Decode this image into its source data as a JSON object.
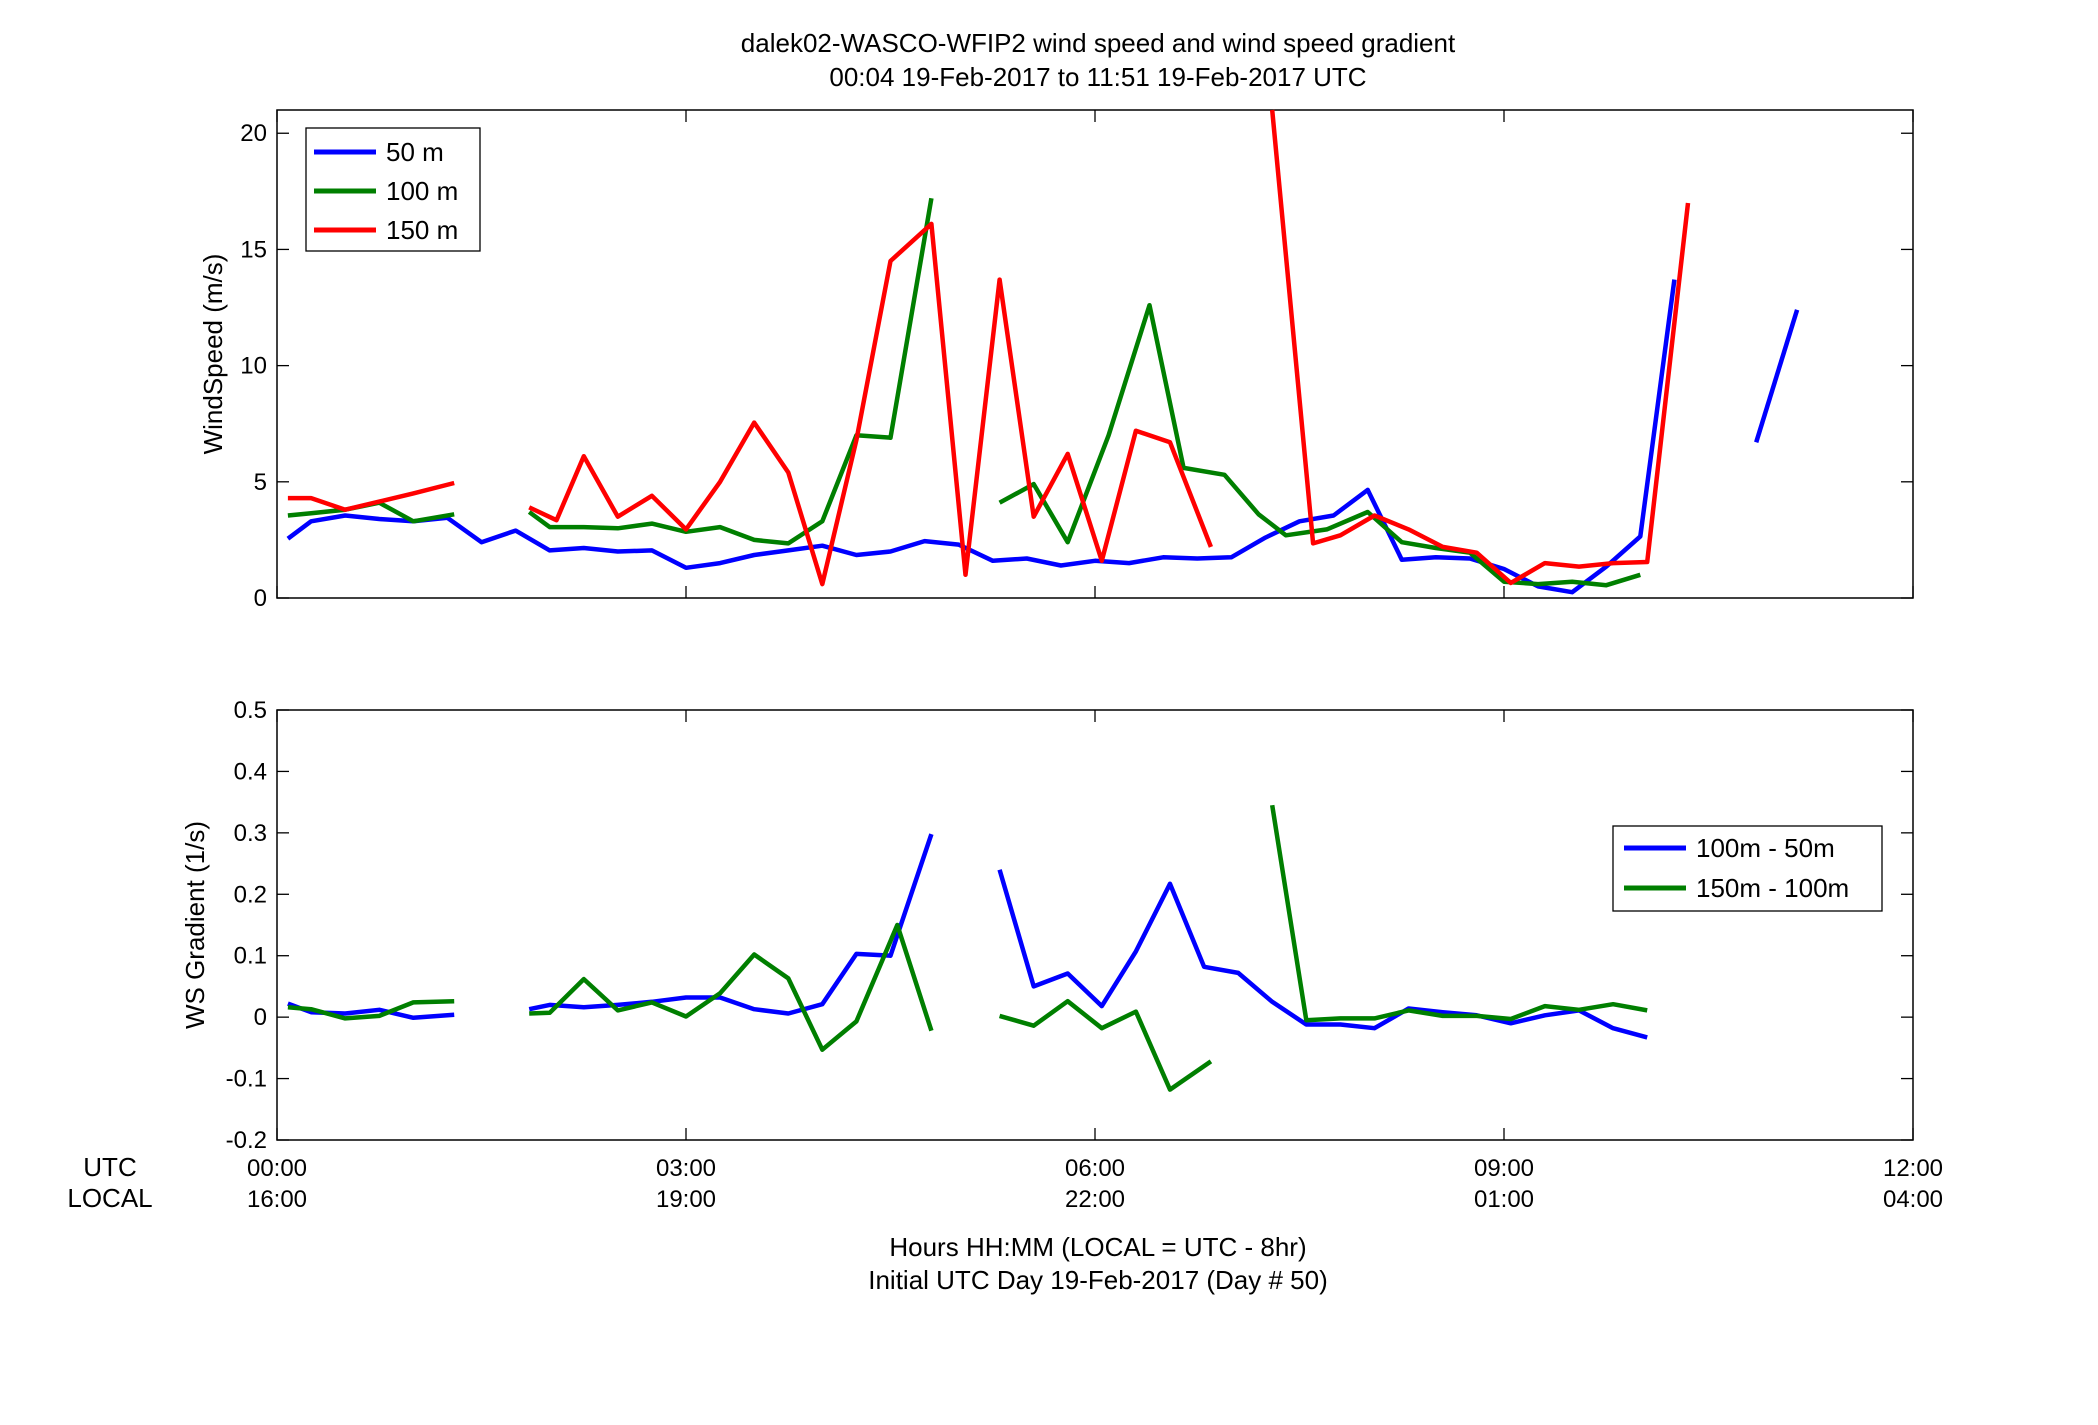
{
  "figure": {
    "title_line1": "dalek02-WASCO-WFIP2  wind speed and wind speed gradient",
    "title_line2": "00:04 19-Feb-2017 to 11:51 19-Feb-2017  UTC",
    "utc_row_label": "UTC",
    "local_row_label": "LOCAL",
    "xlabel_line1": "Hours HH:MM  (LOCAL = UTC - 8hr)",
    "xlabel_line2": "Initial UTC Day 19-Feb-2017 (Day # 50)",
    "x_ticks_hours": [
      0,
      3,
      6,
      9,
      12
    ],
    "x_ticks_utc": [
      "00:00",
      "03:00",
      "06:00",
      "09:00",
      "12:00"
    ],
    "x_ticks_local": [
      "16:00",
      "19:00",
      "22:00",
      "01:00",
      "04:00"
    ],
    "xlim_hours": [
      0,
      12
    ]
  },
  "colors": {
    "blue": "#0000ff",
    "green": "#007f00",
    "red": "#ff0000"
  },
  "chart_data": [
    {
      "type": "line",
      "ylabel": "WindSpeed (m/s)",
      "ylim": [
        0,
        21
      ],
      "y_ticks": [
        0,
        5,
        10,
        15,
        20
      ],
      "legend_position": "top-left",
      "series": [
        {
          "name": "50 m",
          "color": "#0000ff",
          "segments": [
            [
              [
                0.08,
                2.55
              ],
              [
                0.25,
                3.3
              ],
              [
                0.5,
                3.55
              ],
              [
                0.75,
                3.4
              ],
              [
                1.0,
                3.3
              ],
              [
                1.25,
                3.45
              ],
              [
                1.5,
                2.4
              ],
              [
                1.75,
                2.9
              ],
              [
                2.0,
                2.05
              ],
              [
                2.25,
                2.15
              ],
              [
                2.5,
                2.0
              ],
              [
                2.75,
                2.05
              ],
              [
                3.0,
                1.3
              ],
              [
                3.25,
                1.5
              ],
              [
                3.5,
                1.85
              ],
              [
                3.75,
                2.05
              ],
              [
                4.0,
                2.25
              ],
              [
                4.25,
                1.85
              ],
              [
                4.5,
                2.0
              ],
              [
                4.75,
                2.45
              ],
              [
                5.0,
                2.3
              ],
              [
                5.25,
                1.6
              ],
              [
                5.5,
                1.7
              ],
              [
                5.75,
                1.4
              ],
              [
                6.0,
                1.6
              ],
              [
                6.25,
                1.5
              ],
              [
                6.5,
                1.75
              ],
              [
                6.75,
                1.7
              ],
              [
                7.0,
                1.75
              ],
              [
                7.25,
                2.6
              ],
              [
                7.5,
                3.3
              ],
              [
                7.75,
                3.55
              ],
              [
                8.0,
                4.65
              ],
              [
                8.25,
                1.65
              ],
              [
                8.5,
                1.75
              ],
              [
                8.75,
                1.7
              ],
              [
                9.0,
                1.25
              ],
              [
                9.25,
                0.5
              ],
              [
                9.5,
                0.25
              ],
              [
                9.75,
                1.35
              ],
              [
                10.0,
                2.65
              ],
              [
                10.25,
                13.7
              ]
            ],
            [
              [
                10.85,
                6.7
              ],
              [
                11.15,
                12.4
              ]
            ]
          ]
        },
        {
          "name": "100 m",
          "color": "#007f00",
          "segments": [
            [
              [
                0.08,
                3.55
              ],
              [
                0.25,
                3.65
              ],
              [
                0.5,
                3.8
              ],
              [
                0.75,
                4.1
              ],
              [
                1.0,
                3.3
              ],
              [
                1.3,
                3.6
              ]
            ],
            [
              [
                1.85,
                3.7
              ],
              [
                2.0,
                3.05
              ],
              [
                2.25,
                3.05
              ],
              [
                2.5,
                3.0
              ],
              [
                2.75,
                3.2
              ],
              [
                3.0,
                2.85
              ],
              [
                3.25,
                3.05
              ],
              [
                3.5,
                2.5
              ],
              [
                3.75,
                2.35
              ],
              [
                4.0,
                3.3
              ],
              [
                4.25,
                7.0
              ],
              [
                4.5,
                6.9
              ],
              [
                4.8,
                17.2
              ]
            ],
            [
              [
                5.3,
                4.1
              ],
              [
                5.55,
                4.9
              ],
              [
                5.8,
                2.4
              ],
              [
                6.1,
                7.0
              ],
              [
                6.4,
                12.6
              ],
              [
                6.65,
                5.6
              ],
              [
                6.95,
                5.3
              ],
              [
                7.2,
                3.6
              ],
              [
                7.4,
                2.7
              ],
              [
                7.7,
                2.95
              ],
              [
                8.0,
                3.7
              ],
              [
                8.25,
                2.4
              ],
              [
                8.5,
                2.15
              ],
              [
                8.75,
                1.95
              ],
              [
                9.0,
                0.7
              ],
              [
                9.25,
                0.6
              ],
              [
                9.5,
                0.7
              ],
              [
                9.75,
                0.55
              ],
              [
                10.0,
                1.0
              ]
            ]
          ]
        },
        {
          "name": "150 m",
          "color": "#ff0000",
          "segments": [
            [
              [
                0.08,
                4.3
              ],
              [
                0.25,
                4.3
              ],
              [
                0.5,
                3.8
              ],
              [
                0.75,
                4.15
              ],
              [
                1.0,
                4.5
              ],
              [
                1.3,
                4.95
              ]
            ],
            [
              [
                1.85,
                3.9
              ],
              [
                2.05,
                3.35
              ],
              [
                2.25,
                6.1
              ],
              [
                2.5,
                3.5
              ],
              [
                2.75,
                4.4
              ],
              [
                3.0,
                2.95
              ],
              [
                3.25,
                5.0
              ],
              [
                3.5,
                7.55
              ],
              [
                3.75,
                5.4
              ],
              [
                4.0,
                0.6
              ],
              [
                4.25,
                6.8
              ],
              [
                4.5,
                14.5
              ],
              [
                4.8,
                16.1
              ],
              [
                5.05,
                1.0
              ],
              [
                5.3,
                13.7
              ],
              [
                5.55,
                3.5
              ],
              [
                5.8,
                6.2
              ],
              [
                6.05,
                1.6
              ],
              [
                6.3,
                7.2
              ],
              [
                6.55,
                6.7
              ],
              [
                6.85,
                2.2
              ]
            ],
            [
              [
                7.3,
                21.0
              ],
              [
                7.6,
                2.35
              ],
              [
                7.8,
                2.7
              ],
              [
                8.05,
                3.55
              ],
              [
                8.3,
                2.95
              ],
              [
                8.55,
                2.2
              ],
              [
                8.8,
                1.95
              ],
              [
                9.05,
                0.65
              ],
              [
                9.3,
                1.5
              ],
              [
                9.55,
                1.35
              ],
              [
                9.8,
                1.5
              ],
              [
                10.05,
                1.55
              ],
              [
                10.35,
                17.0
              ]
            ]
          ]
        }
      ]
    },
    {
      "type": "line",
      "ylabel": "WS Gradient (1/s)",
      "ylim": [
        -0.2,
        0.5
      ],
      "y_ticks": [
        -0.2,
        -0.1,
        0,
        0.1,
        0.2,
        0.3,
        0.4,
        0.5
      ],
      "legend_position": "right",
      "series": [
        {
          "name": "100m - 50m",
          "color": "#0000ff",
          "segments": [
            [
              [
                0.08,
                0.022
              ],
              [
                0.25,
                0.008
              ],
              [
                0.5,
                0.006
              ],
              [
                0.75,
                0.012
              ],
              [
                1.0,
                -0.001
              ],
              [
                1.3,
                0.004
              ]
            ],
            [
              [
                1.85,
                0.013
              ],
              [
                2.0,
                0.02
              ],
              [
                2.25,
                0.016
              ],
              [
                2.5,
                0.02
              ],
              [
                2.75,
                0.025
              ],
              [
                3.0,
                0.032
              ],
              [
                3.25,
                0.032
              ],
              [
                3.5,
                0.013
              ],
              [
                3.75,
                0.006
              ],
              [
                4.0,
                0.021
              ],
              [
                4.25,
                0.103
              ],
              [
                4.5,
                0.1
              ],
              [
                4.8,
                0.298
              ]
            ],
            [
              [
                5.3,
                0.24
              ],
              [
                5.55,
                0.05
              ],
              [
                5.8,
                0.071
              ],
              [
                6.05,
                0.018
              ],
              [
                6.3,
                0.107
              ],
              [
                6.55,
                0.217
              ],
              [
                6.8,
                0.082
              ],
              [
                7.05,
                0.072
              ],
              [
                7.3,
                0.025
              ],
              [
                7.55,
                -0.012
              ],
              [
                7.8,
                -0.012
              ],
              [
                8.05,
                -0.018
              ],
              [
                8.3,
                0.014
              ],
              [
                8.55,
                0.008
              ],
              [
                8.8,
                0.003
              ],
              [
                9.05,
                -0.01
              ],
              [
                9.3,
                0.003
              ],
              [
                9.55,
                0.011
              ],
              [
                9.8,
                -0.018
              ],
              [
                10.05,
                -0.033
              ]
            ]
          ]
        },
        {
          "name": "150m - 100m",
          "color": "#007f00",
          "segments": [
            [
              [
                0.08,
                0.016
              ],
              [
                0.25,
                0.013
              ],
              [
                0.5,
                -0.002
              ],
              [
                0.75,
                0.002
              ],
              [
                1.0,
                0.024
              ],
              [
                1.3,
                0.026
              ]
            ],
            [
              [
                1.85,
                0.006
              ],
              [
                2.0,
                0.007
              ],
              [
                2.25,
                0.062
              ],
              [
                2.5,
                0.011
              ],
              [
                2.75,
                0.024
              ],
              [
                3.0,
                0.001
              ],
              [
                3.25,
                0.039
              ],
              [
                3.5,
                0.102
              ],
              [
                3.75,
                0.063
              ],
              [
                4.0,
                -0.053
              ],
              [
                4.25,
                -0.007
              ],
              [
                4.55,
                0.15
              ],
              [
                4.8,
                -0.022
              ]
            ],
            [
              [
                5.3,
                0.002
              ],
              [
                5.55,
                -0.014
              ],
              [
                5.8,
                0.026
              ],
              [
                6.05,
                -0.018
              ],
              [
                6.3,
                0.009
              ],
              [
                6.55,
                -0.118
              ],
              [
                6.85,
                -0.072
              ]
            ],
            [
              [
                7.3,
                0.345
              ],
              [
                7.55,
                -0.005
              ],
              [
                7.8,
                -0.002
              ],
              [
                8.05,
                -0.002
              ],
              [
                8.3,
                0.011
              ],
              [
                8.55,
                0.002
              ],
              [
                8.8,
                0.002
              ],
              [
                9.05,
                -0.003
              ],
              [
                9.3,
                0.018
              ],
              [
                9.55,
                0.012
              ],
              [
                9.8,
                0.021
              ],
              [
                10.05,
                0.011
              ]
            ]
          ]
        }
      ]
    }
  ]
}
